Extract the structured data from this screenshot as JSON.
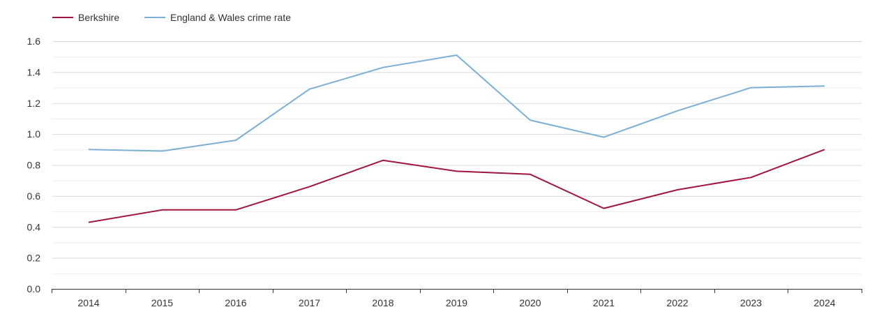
{
  "chart_data": {
    "type": "line",
    "title": "",
    "xlabel": "",
    "ylabel": "",
    "categories": [
      "2014",
      "2015",
      "2016",
      "2017",
      "2018",
      "2019",
      "2020",
      "2021",
      "2022",
      "2023",
      "2024"
    ],
    "ylim": [
      0,
      1.6
    ],
    "yticks": [
      "0.0",
      "0.2",
      "0.4",
      "0.6",
      "0.8",
      "1.0",
      "1.2",
      "1.4",
      "1.6"
    ],
    "grid": true,
    "legend_position": "top-left",
    "series": [
      {
        "name": "Berkshire",
        "color": "#a0153e",
        "values": [
          0.43,
          0.51,
          0.51,
          0.66,
          0.83,
          0.76,
          0.74,
          0.52,
          0.64,
          0.72,
          0.9
        ]
      },
      {
        "name": "England & Wales crime rate",
        "color": "#7bafd4",
        "values": [
          0.9,
          0.89,
          0.96,
          1.29,
          1.43,
          1.51,
          1.09,
          0.98,
          1.15,
          1.3,
          1.31
        ]
      }
    ]
  }
}
